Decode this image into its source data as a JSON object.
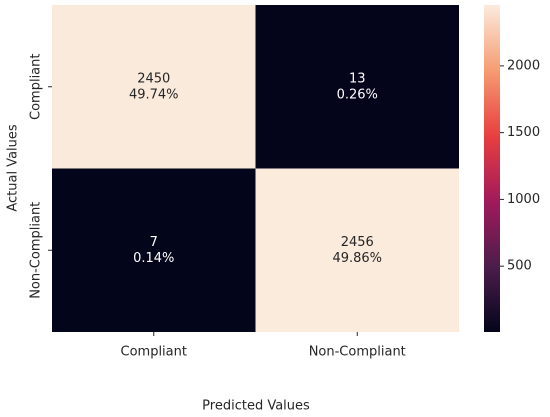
{
  "chart_data": {
    "type": "heatmap",
    "x_label": "Predicted Values",
    "y_label": "Actual Values",
    "x_categories": [
      "Compliant",
      "Non-Compliant"
    ],
    "y_categories": [
      "Compliant",
      "Non-Compliant"
    ],
    "values": [
      [
        2450,
        13
      ],
      [
        7,
        2456
      ]
    ],
    "annotations": [
      [
        "49.74%",
        "0.26%"
      ],
      [
        "0.14%",
        "49.86%"
      ]
    ],
    "colormap": [
      "#03051a",
      "#4c1d4b",
      "#a11a5b",
      "#e83f3f",
      "#f69c73",
      "#faebdd"
    ],
    "clim": [
      7,
      2456
    ],
    "cticks": [
      500,
      1000,
      1500,
      2000
    ]
  }
}
